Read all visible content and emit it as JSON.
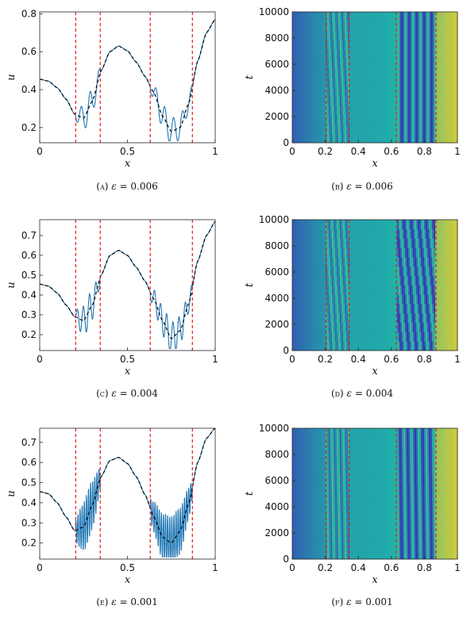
{
  "panels": [
    {
      "id": "A",
      "caption_label": "(a)",
      "eps_symbol": "ε",
      "eps_value": "0.006"
    },
    {
      "id": "B",
      "caption_label": "(b)",
      "eps_symbol": "ε",
      "eps_value": "0.006"
    },
    {
      "id": "C",
      "caption_label": "(c)",
      "eps_symbol": "ε",
      "eps_value": "0.004"
    },
    {
      "id": "D",
      "caption_label": "(d)",
      "eps_symbol": "ε",
      "eps_value": "0.004"
    },
    {
      "id": "E",
      "caption_label": "(e)",
      "eps_symbol": "ε",
      "eps_value": "0.001"
    },
    {
      "id": "F",
      "caption_label": "(f)",
      "eps_symbol": "ε",
      "eps_value": "0.001"
    }
  ],
  "colors": {
    "solution_line": "#1f77b4",
    "reference_line": "#000000",
    "partition_line": "#e31a1c",
    "heatmap_low": "#3b2fb8",
    "heatmap_mid": "#1fb2a9",
    "heatmap_high": "#f5d223"
  },
  "chart_data": [
    {
      "type": "line",
      "panel": "A",
      "xlabel": "x",
      "ylabel": "u",
      "xlim": [
        0,
        1
      ],
      "ylim": [
        0.12,
        0.81
      ],
      "xticks": [
        "0",
        "0.5",
        "1"
      ],
      "xtick_values": [
        0,
        0.5,
        1
      ],
      "yticks": [
        "0.2",
        "0.4",
        "0.6",
        "0.8"
      ],
      "ytick_values": [
        0.2,
        0.4,
        0.6,
        0.8
      ],
      "vlines": [
        0.205,
        0.345,
        0.63,
        0.87
      ],
      "oscillation": {
        "amplitude": 0.07,
        "wavelength": 0.05
      },
      "series": [
        {
          "style": "solid",
          "color_key": "solution_line"
        },
        {
          "style": "dashed",
          "color_key": "reference_line",
          "x": [
            0,
            0.05,
            0.1,
            0.15,
            0.2,
            0.25,
            0.3,
            0.35,
            0.4,
            0.45,
            0.5,
            0.55,
            0.6,
            0.65,
            0.7,
            0.75,
            0.8,
            0.85,
            0.9,
            0.95,
            1.0
          ],
          "y": [
            0.455,
            0.445,
            0.41,
            0.35,
            0.27,
            0.25,
            0.34,
            0.5,
            0.6,
            0.63,
            0.605,
            0.545,
            0.47,
            0.385,
            0.26,
            0.18,
            0.2,
            0.33,
            0.55,
            0.7,
            0.77
          ]
        }
      ]
    },
    {
      "type": "heatmap",
      "panel": "B",
      "xlabel": "x",
      "ylabel": "t",
      "xlim": [
        0,
        1
      ],
      "ylim": [
        0,
        10000
      ],
      "xticks": [
        "0",
        "0.2",
        "0.4",
        "0.6",
        "0.8",
        "1"
      ],
      "xtick_values": [
        0,
        0.2,
        0.4,
        0.6,
        0.8,
        1
      ],
      "yticks": [
        "0",
        "2000",
        "4000",
        "6000",
        "8000",
        "10000"
      ],
      "ytick_values": [
        0,
        2000,
        4000,
        6000,
        8000,
        10000
      ],
      "vlines": [
        0.205,
        0.345,
        0.63,
        0.87
      ],
      "stripe_drift": [
        0.04,
        0.0
      ]
    },
    {
      "type": "line",
      "panel": "C",
      "xlabel": "x",
      "ylabel": "u",
      "xlim": [
        0,
        1
      ],
      "ylim": [
        0.12,
        0.78
      ],
      "xticks": [
        "0",
        "0.5",
        "1"
      ],
      "xtick_values": [
        0,
        0.5,
        1
      ],
      "yticks": [
        "0.2",
        "0.3",
        "0.4",
        "0.5",
        "0.6",
        "0.7"
      ],
      "ytick_values": [
        0.2,
        0.3,
        0.4,
        0.5,
        0.6,
        0.7
      ],
      "vlines": [
        0.205,
        0.345,
        0.63,
        0.87
      ],
      "oscillation": {
        "amplitude": 0.08,
        "wavelength": 0.035
      },
      "series": [
        {
          "style": "solid",
          "color_key": "solution_line"
        },
        {
          "style": "dashed",
          "color_key": "reference_line",
          "x": [
            0,
            0.05,
            0.1,
            0.15,
            0.2,
            0.25,
            0.3,
            0.35,
            0.4,
            0.45,
            0.5,
            0.55,
            0.6,
            0.65,
            0.7,
            0.75,
            0.8,
            0.85,
            0.9,
            0.95,
            1.0
          ],
          "y": [
            0.455,
            0.445,
            0.41,
            0.35,
            0.29,
            0.27,
            0.35,
            0.5,
            0.6,
            0.625,
            0.6,
            0.54,
            0.47,
            0.38,
            0.27,
            0.18,
            0.22,
            0.36,
            0.57,
            0.7,
            0.77
          ]
        }
      ]
    },
    {
      "type": "heatmap",
      "panel": "D",
      "xlabel": "x",
      "ylabel": "t",
      "xlim": [
        0,
        1
      ],
      "ylim": [
        0,
        10000
      ],
      "xticks": [
        "0",
        "0.2",
        "0.4",
        "0.6",
        "0.8",
        "1"
      ],
      "xtick_values": [
        0,
        0.2,
        0.4,
        0.6,
        0.8,
        1
      ],
      "yticks": [
        "0",
        "2000",
        "4000",
        "6000",
        "8000",
        "10000"
      ],
      "ytick_values": [
        0,
        2000,
        4000,
        6000,
        8000,
        10000
      ],
      "vlines": [
        0.205,
        0.345,
        0.63,
        0.87
      ],
      "stripe_drift": [
        0.05,
        0.08
      ]
    },
    {
      "type": "line",
      "panel": "E",
      "xlabel": "x",
      "ylabel": "u",
      "xlim": [
        0,
        1
      ],
      "ylim": [
        0.12,
        0.77
      ],
      "xticks": [
        "0",
        "0.5",
        "1"
      ],
      "xtick_values": [
        0,
        0.5,
        1
      ],
      "yticks": [
        "0.2",
        "0.3",
        "0.4",
        "0.5",
        "0.6",
        "0.7"
      ],
      "ytick_values": [
        0.2,
        0.3,
        0.4,
        0.5,
        0.6,
        0.7
      ],
      "vlines": [
        0.205,
        0.345,
        0.63,
        0.87
      ],
      "oscillation": {
        "amplitude": 0.13,
        "wavelength": 0.012
      },
      "series": [
        {
          "style": "solid",
          "color_key": "solution_line"
        },
        {
          "style": "dashed",
          "color_key": "reference_line",
          "x": [
            0,
            0.05,
            0.1,
            0.15,
            0.2,
            0.25,
            0.3,
            0.35,
            0.4,
            0.45,
            0.5,
            0.55,
            0.6,
            0.65,
            0.7,
            0.75,
            0.8,
            0.85,
            0.9,
            0.95,
            1.0
          ],
          "y": [
            0.455,
            0.445,
            0.4,
            0.33,
            0.26,
            0.28,
            0.39,
            0.53,
            0.61,
            0.625,
            0.595,
            0.53,
            0.44,
            0.33,
            0.23,
            0.2,
            0.26,
            0.4,
            0.6,
            0.72,
            0.77
          ]
        }
      ]
    },
    {
      "type": "heatmap",
      "panel": "F",
      "xlabel": "x",
      "ylabel": "t",
      "xlim": [
        0,
        1
      ],
      "ylim": [
        0,
        10000
      ],
      "xticks": [
        "0",
        "0.2",
        "0.4",
        "0.6",
        "0.8",
        "1"
      ],
      "xtick_values": [
        0,
        0.2,
        0.4,
        0.6,
        0.8,
        1
      ],
      "yticks": [
        "0",
        "2000",
        "4000",
        "6000",
        "8000",
        "10000"
      ],
      "ytick_values": [
        0,
        2000,
        4000,
        6000,
        8000,
        10000
      ],
      "vlines": [
        0.205,
        0.345,
        0.63,
        0.87
      ],
      "stripe_drift": [
        0.015,
        0.01
      ]
    }
  ]
}
